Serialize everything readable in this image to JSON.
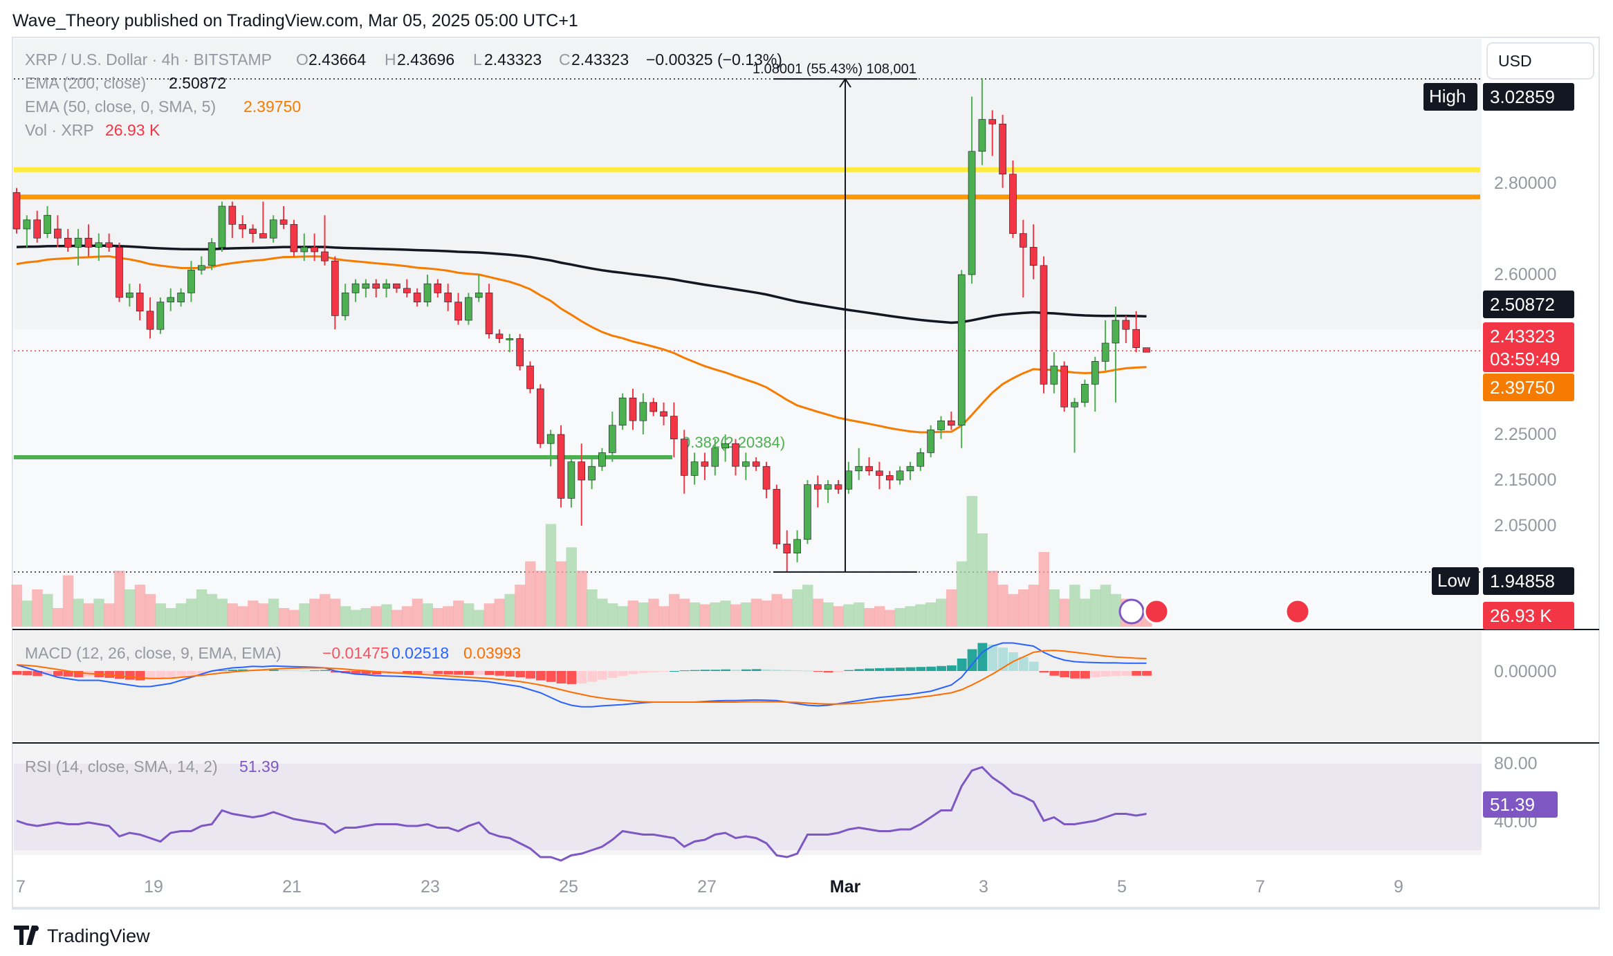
{
  "header": {
    "publisher": "Wave_Theory published on TradingView.com, Mar 05, 2025 05:00 UTC+1"
  },
  "currency_button": "USD",
  "legend": {
    "symbol": "XRP / U.S. Dollar · 4h · BITSTAMP",
    "ohlc": {
      "o_label": "O",
      "o": "2.43664",
      "h_label": "H",
      "h": "2.43696",
      "l_label": "L",
      "l": "2.43323",
      "c_label": "C",
      "c": "2.43323",
      "change": "−0.00325 (−0.13%)"
    },
    "ema200": {
      "label": "EMA (200, close)",
      "value": "2.50872"
    },
    "ema50": {
      "label": "EMA (50, close, 0, SMA, 5)",
      "value": "2.39750"
    },
    "vol": {
      "label": "Vol · XRP",
      "value": "26.93 K"
    }
  },
  "measure_label": "1.08001 (55.43%) 108,001",
  "fib_label": "0.382(2.20384)",
  "badges": {
    "high_label": "High",
    "high_value": "3.02859",
    "low_label": "Low",
    "low_value": "1.94858",
    "ema200": "2.50872",
    "price": "2.43323",
    "countdown": "03:59:49",
    "ema50": "2.39750",
    "volume": "26.93 K",
    "rsi": "51.39"
  },
  "macd_legend": {
    "label": "MACD (12, 26, close, 9, EMA, EMA)",
    "hist": "−0.01475",
    "macd": "0.02518",
    "signal": "0.03993"
  },
  "rsi_legend": {
    "label": "RSI (14, close, SMA, 14, 2)",
    "value": "51.39"
  },
  "footer_logo": "TradingView",
  "colors": {
    "up": "#4caf50",
    "down": "#f23645",
    "ema200": "#131722",
    "ema50": "#f57c00",
    "yellow_line": "#ffeb3b",
    "orange_line": "#ff9800",
    "green_line": "#4caf50",
    "macd": "#2962ff",
    "signal": "#ff6d00",
    "rsi": "#7e57c2"
  },
  "chart_data": {
    "type": "candlestick",
    "symbol": "XRP / U.S. Dollar",
    "timeframe": "4h",
    "x_ticks": [
      "7",
      "19",
      "21",
      "23",
      "25",
      "27",
      "Mar",
      "3",
      "5",
      "7",
      "9"
    ],
    "y_ticks": [
      "2.80000",
      "2.60000",
      "2.25000",
      "2.15000",
      "2.05000"
    ],
    "horizontal_levels": [
      {
        "value": 2.83,
        "color": "yellow"
      },
      {
        "value": 2.77,
        "color": "orange"
      },
      {
        "value": 2.2,
        "color": "green",
        "label": "0.382(2.20384)"
      }
    ],
    "high": 3.02859,
    "low": 1.94858,
    "last_price": 2.43323,
    "ema200_last": 2.50872,
    "ema50_last": 2.3975,
    "candles": [
      [
        2.78,
        2.79,
        2.69,
        2.7
      ],
      [
        2.7,
        2.73,
        2.66,
        2.72
      ],
      [
        2.72,
        2.74,
        2.67,
        2.68
      ],
      [
        2.69,
        2.75,
        2.68,
        2.73
      ],
      [
        2.7,
        2.73,
        2.66,
        2.68
      ],
      [
        2.68,
        2.7,
        2.65,
        2.66
      ],
      [
        2.66,
        2.7,
        2.62,
        2.68
      ],
      [
        2.68,
        2.71,
        2.64,
        2.66
      ],
      [
        2.66,
        2.69,
        2.63,
        2.67
      ],
      [
        2.67,
        2.69,
        2.65,
        2.66
      ],
      [
        2.66,
        2.67,
        2.54,
        2.55
      ],
      [
        2.55,
        2.58,
        2.53,
        2.56
      ],
      [
        2.56,
        2.58,
        2.5,
        2.52
      ],
      [
        2.52,
        2.55,
        2.46,
        2.48
      ],
      [
        2.48,
        2.55,
        2.47,
        2.54
      ],
      [
        2.54,
        2.57,
        2.52,
        2.55
      ],
      [
        2.54,
        2.57,
        2.53,
        2.56
      ],
      [
        2.56,
        2.63,
        2.54,
        2.61
      ],
      [
        2.61,
        2.64,
        2.6,
        2.62
      ],
      [
        2.62,
        2.68,
        2.61,
        2.67
      ],
      [
        2.66,
        2.76,
        2.65,
        2.75
      ],
      [
        2.75,
        2.76,
        2.68,
        2.71
      ],
      [
        2.71,
        2.73,
        2.68,
        2.7
      ],
      [
        2.7,
        2.71,
        2.67,
        2.69
      ],
      [
        2.69,
        2.76,
        2.68,
        2.68
      ],
      [
        2.68,
        2.73,
        2.67,
        2.72
      ],
      [
        2.72,
        2.75,
        2.7,
        2.71
      ],
      [
        2.71,
        2.72,
        2.64,
        2.65
      ],
      [
        2.65,
        2.69,
        2.63,
        2.66
      ],
      [
        2.66,
        2.69,
        2.63,
        2.65
      ],
      [
        2.65,
        2.73,
        2.62,
        2.63
      ],
      [
        2.63,
        2.64,
        2.48,
        2.51
      ],
      [
        2.51,
        2.58,
        2.5,
        2.56
      ],
      [
        2.56,
        2.59,
        2.54,
        2.58
      ],
      [
        2.57,
        2.59,
        2.55,
        2.58
      ],
      [
        2.58,
        2.59,
        2.55,
        2.57
      ],
      [
        2.57,
        2.59,
        2.55,
        2.58
      ],
      [
        2.58,
        2.58,
        2.56,
        2.57
      ],
      [
        2.57,
        2.59,
        2.55,
        2.56
      ],
      [
        2.56,
        2.57,
        2.53,
        2.54
      ],
      [
        2.54,
        2.6,
        2.53,
        2.58
      ],
      [
        2.58,
        2.59,
        2.55,
        2.56
      ],
      [
        2.56,
        2.58,
        2.52,
        2.54
      ],
      [
        2.54,
        2.56,
        2.49,
        2.5
      ],
      [
        2.5,
        2.56,
        2.49,
        2.55
      ],
      [
        2.55,
        2.6,
        2.54,
        2.56
      ],
      [
        2.56,
        2.58,
        2.46,
        2.47
      ],
      [
        2.47,
        2.48,
        2.45,
        2.46
      ],
      [
        2.46,
        2.47,
        2.43,
        2.46
      ],
      [
        2.46,
        2.47,
        2.39,
        2.4
      ],
      [
        2.4,
        2.41,
        2.34,
        2.35
      ],
      [
        2.35,
        2.36,
        2.22,
        2.23
      ],
      [
        2.23,
        2.26,
        2.18,
        2.25
      ],
      [
        2.25,
        2.27,
        2.09,
        2.11
      ],
      [
        2.11,
        2.2,
        2.09,
        2.19
      ],
      [
        2.19,
        2.23,
        2.05,
        2.15
      ],
      [
        2.15,
        2.2,
        2.13,
        2.18
      ],
      [
        2.18,
        2.22,
        2.17,
        2.21
      ],
      [
        2.21,
        2.3,
        2.19,
        2.27
      ],
      [
        2.27,
        2.34,
        2.26,
        2.33
      ],
      [
        2.33,
        2.35,
        2.26,
        2.28
      ],
      [
        2.28,
        2.34,
        2.25,
        2.32
      ],
      [
        2.32,
        2.33,
        2.29,
        2.3
      ],
      [
        2.3,
        2.32,
        2.27,
        2.29
      ],
      [
        2.29,
        2.32,
        2.2,
        2.24
      ],
      [
        2.24,
        2.26,
        2.12,
        2.16
      ],
      [
        2.16,
        2.21,
        2.14,
        2.19
      ],
      [
        2.19,
        2.21,
        2.15,
        2.18
      ],
      [
        2.18,
        2.24,
        2.16,
        2.22
      ],
      [
        2.22,
        2.25,
        2.19,
        2.23
      ],
      [
        2.23,
        2.24,
        2.16,
        2.18
      ],
      [
        2.18,
        2.21,
        2.15,
        2.19
      ],
      [
        2.19,
        2.2,
        2.17,
        2.18
      ],
      [
        2.18,
        2.19,
        2.11,
        2.13
      ],
      [
        2.13,
        2.14,
        2.0,
        2.01
      ],
      [
        2.01,
        2.04,
        1.95,
        1.99
      ],
      [
        1.99,
        2.04,
        1.97,
        2.02
      ],
      [
        2.02,
        2.15,
        2.01,
        2.14
      ],
      [
        2.14,
        2.16,
        2.09,
        2.13
      ],
      [
        2.13,
        2.15,
        2.1,
        2.14
      ],
      [
        2.14,
        2.15,
        2.12,
        2.13
      ],
      [
        2.13,
        2.19,
        2.12,
        2.17
      ],
      [
        2.17,
        2.22,
        2.15,
        2.18
      ],
      [
        2.18,
        2.2,
        2.16,
        2.17
      ],
      [
        2.17,
        2.19,
        2.13,
        2.16
      ],
      [
        2.16,
        2.17,
        2.13,
        2.15
      ],
      [
        2.15,
        2.18,
        2.14,
        2.17
      ],
      [
        2.17,
        2.19,
        2.15,
        2.18
      ],
      [
        2.18,
        2.22,
        2.17,
        2.21
      ],
      [
        2.21,
        2.27,
        2.2,
        2.26
      ],
      [
        2.26,
        2.29,
        2.24,
        2.28
      ],
      [
        2.28,
        2.3,
        2.26,
        2.27
      ],
      [
        2.27,
        2.61,
        2.22,
        2.6
      ],
      [
        2.6,
        2.99,
        2.58,
        2.87
      ],
      [
        2.87,
        3.03,
        2.84,
        2.94
      ],
      [
        2.94,
        2.96,
        2.86,
        2.93
      ],
      [
        2.93,
        2.95,
        2.79,
        2.82
      ],
      [
        2.82,
        2.85,
        2.68,
        2.69
      ],
      [
        2.69,
        2.72,
        2.55,
        2.66
      ],
      [
        2.66,
        2.71,
        2.59,
        2.62
      ],
      [
        2.62,
        2.64,
        2.34,
        2.36
      ],
      [
        2.36,
        2.43,
        2.34,
        2.4
      ],
      [
        2.4,
        2.41,
        2.3,
        2.31
      ],
      [
        2.31,
        2.33,
        2.21,
        2.32
      ],
      [
        2.32,
        2.37,
        2.31,
        2.36
      ],
      [
        2.36,
        2.42,
        2.3,
        2.41
      ],
      [
        2.41,
        2.5,
        2.39,
        2.45
      ],
      [
        2.45,
        2.53,
        2.32,
        2.5
      ],
      [
        2.5,
        2.51,
        2.45,
        2.48
      ],
      [
        2.48,
        2.52,
        2.43,
        2.44
      ],
      [
        2.44,
        2.44,
        2.43,
        2.43
      ]
    ],
    "volume": [
      45,
      28,
      40,
      35,
      20,
      55,
      30,
      25,
      30,
      25,
      60,
      40,
      45,
      35,
      25,
      20,
      25,
      30,
      40,
      35,
      30,
      25,
      22,
      28,
      25,
      30,
      20,
      18,
      25,
      30,
      35,
      30,
      22,
      18,
      20,
      22,
      24,
      18,
      22,
      30,
      25,
      20,
      22,
      28,
      25,
      18,
      25,
      30,
      35,
      45,
      70,
      60,
      110,
      70,
      85,
      60,
      40,
      30,
      25,
      22,
      28,
      26,
      30,
      22,
      35,
      30,
      26,
      24,
      26,
      28,
      24,
      26,
      30,
      28,
      35,
      30,
      40,
      45,
      30,
      26,
      22,
      24,
      26,
      20,
      22,
      18,
      20,
      22,
      24,
      26,
      30,
      40,
      70,
      140,
      100,
      60,
      45,
      35,
      40,
      45,
      80,
      40,
      30,
      45,
      30,
      40,
      45,
      35,
      30,
      25,
      20
    ],
    "macd": {
      "hist": [
        -0.012,
        -0.014,
        -0.016,
        -0.014,
        -0.016,
        -0.018,
        -0.02,
        -0.018,
        -0.02,
        -0.022,
        -0.025,
        -0.028,
        -0.03,
        -0.028,
        -0.024,
        -0.02,
        -0.016,
        -0.012,
        -0.008,
        -0.004,
        0.002,
        0.004,
        0.005,
        0.004,
        0.003,
        0.004,
        0.003,
        0.002,
        0.001,
        0.002,
        0.003,
        -0.005,
        -0.007,
        -0.009,
        -0.01,
        -0.011,
        -0.01,
        -0.009,
        -0.009,
        -0.01,
        -0.009,
        -0.01,
        -0.011,
        -0.012,
        -0.013,
        -0.012,
        -0.013,
        -0.015,
        -0.018,
        -0.02,
        -0.024,
        -0.03,
        -0.035,
        -0.04,
        -0.042,
        -0.04,
        -0.035,
        -0.028,
        -0.022,
        -0.016,
        -0.01,
        -0.006,
        -0.004,
        -0.002,
        0.0,
        0.002,
        0.003,
        0.004,
        0.004,
        0.005,
        0.004,
        0.005,
        0.006,
        0.005,
        0.004,
        0.003,
        0.002,
        0.001,
        -0.002,
        -0.005,
        -0.004,
        0.003,
        0.006,
        0.008,
        0.009,
        0.01,
        0.011,
        0.012,
        0.013,
        0.014,
        0.016,
        0.018,
        0.04,
        0.07,
        0.09,
        0.085,
        0.075,
        0.06,
        0.045,
        0.03,
        -0.005,
        -0.015,
        -0.02,
        -0.024,
        -0.024,
        -0.02,
        -0.018,
        -0.016,
        -0.015,
        -0.015,
        -0.015
      ],
      "macd_line": [
        0.02,
        0.01,
        0.0,
        -0.01,
        -0.02,
        -0.025,
        -0.03,
        -0.03,
        -0.03,
        -0.035,
        -0.04,
        -0.045,
        -0.05,
        -0.05,
        -0.045,
        -0.04,
        -0.03,
        -0.02,
        -0.01,
        0.0,
        0.005,
        0.01,
        0.012,
        0.015,
        0.014,
        0.016,
        0.015,
        0.014,
        0.013,
        0.012,
        0.01,
        0.0,
        -0.005,
        -0.01,
        -0.012,
        -0.015,
        -0.016,
        -0.017,
        -0.018,
        -0.02,
        -0.022,
        -0.024,
        -0.026,
        -0.028,
        -0.03,
        -0.032,
        -0.035,
        -0.04,
        -0.045,
        -0.05,
        -0.06,
        -0.07,
        -0.085,
        -0.1,
        -0.11,
        -0.115,
        -0.115,
        -0.112,
        -0.11,
        -0.108,
        -0.105,
        -0.102,
        -0.1,
        -0.1,
        -0.1,
        -0.1,
        -0.1,
        -0.098,
        -0.096,
        -0.095,
        -0.095,
        -0.094,
        -0.093,
        -0.094,
        -0.095,
        -0.1,
        -0.105,
        -0.11,
        -0.112,
        -0.11,
        -0.105,
        -0.1,
        -0.095,
        -0.09,
        -0.085,
        -0.082,
        -0.078,
        -0.075,
        -0.07,
        -0.065,
        -0.055,
        -0.045,
        -0.02,
        0.02,
        0.06,
        0.08,
        0.09,
        0.09,
        0.085,
        0.08,
        0.06,
        0.045,
        0.035,
        0.03,
        0.028,
        0.027,
        0.026,
        0.026,
        0.025,
        0.025,
        0.025
      ],
      "signal_line": [
        0.02,
        0.018,
        0.015,
        0.01,
        0.005,
        0.0,
        -0.005,
        -0.008,
        -0.01,
        -0.013,
        -0.016,
        -0.019,
        -0.022,
        -0.024,
        -0.024,
        -0.023,
        -0.02,
        -0.017,
        -0.014,
        -0.01,
        -0.006,
        -0.003,
        0.0,
        0.002,
        0.004,
        0.006,
        0.008,
        0.009,
        0.01,
        0.01,
        0.01,
        0.008,
        0.006,
        0.003,
        0.001,
        -0.002,
        -0.004,
        -0.006,
        -0.008,
        -0.01,
        -0.012,
        -0.014,
        -0.016,
        -0.018,
        -0.02,
        -0.022,
        -0.024,
        -0.027,
        -0.03,
        -0.034,
        -0.039,
        -0.045,
        -0.052,
        -0.06,
        -0.068,
        -0.075,
        -0.082,
        -0.087,
        -0.091,
        -0.094,
        -0.097,
        -0.099,
        -0.1,
        -0.1,
        -0.1,
        -0.1,
        -0.1,
        -0.1,
        -0.1,
        -0.1,
        -0.1,
        -0.099,
        -0.099,
        -0.099,
        -0.099,
        -0.1,
        -0.101,
        -0.103,
        -0.105,
        -0.106,
        -0.106,
        -0.105,
        -0.103,
        -0.1,
        -0.097,
        -0.094,
        -0.091,
        -0.088,
        -0.084,
        -0.08,
        -0.075,
        -0.07,
        -0.06,
        -0.045,
        -0.028,
        -0.01,
        0.01,
        0.03,
        0.045,
        0.06,
        0.065,
        0.066,
        0.064,
        0.06,
        0.056,
        0.052,
        0.048,
        0.045,
        0.043,
        0.041,
        0.04
      ]
    },
    "rsi": [
      47,
      45,
      44,
      45,
      46,
      45,
      45,
      46,
      45,
      44,
      38,
      40,
      39,
      37,
      35,
      40,
      41,
      41,
      44,
      45,
      53,
      51,
      50,
      49,
      50,
      52,
      50,
      48,
      47,
      46,
      45,
      40,
      43,
      43,
      44,
      45,
      45,
      45,
      44,
      44,
      45,
      43,
      43,
      41,
      44,
      46,
      40,
      38,
      37,
      34,
      31,
      26,
      26,
      24,
      27,
      28,
      30,
      32,
      36,
      41,
      40,
      39,
      39,
      38,
      37,
      32,
      35,
      36,
      39,
      40,
      37,
      38,
      37,
      34,
      27,
      26,
      28,
      39,
      39,
      39,
      40,
      42,
      43,
      42,
      41,
      41,
      42,
      42,
      45,
      49,
      53,
      53,
      67,
      76,
      78,
      72,
      68,
      63,
      61,
      58,
      47,
      49,
      45,
      45,
      46,
      47,
      49,
      51,
      51,
      50,
      51
    ],
    "rsi_ticks": [
      "80.00",
      "40.00"
    ],
    "macd_ticks": [
      "0.00000"
    ]
  }
}
